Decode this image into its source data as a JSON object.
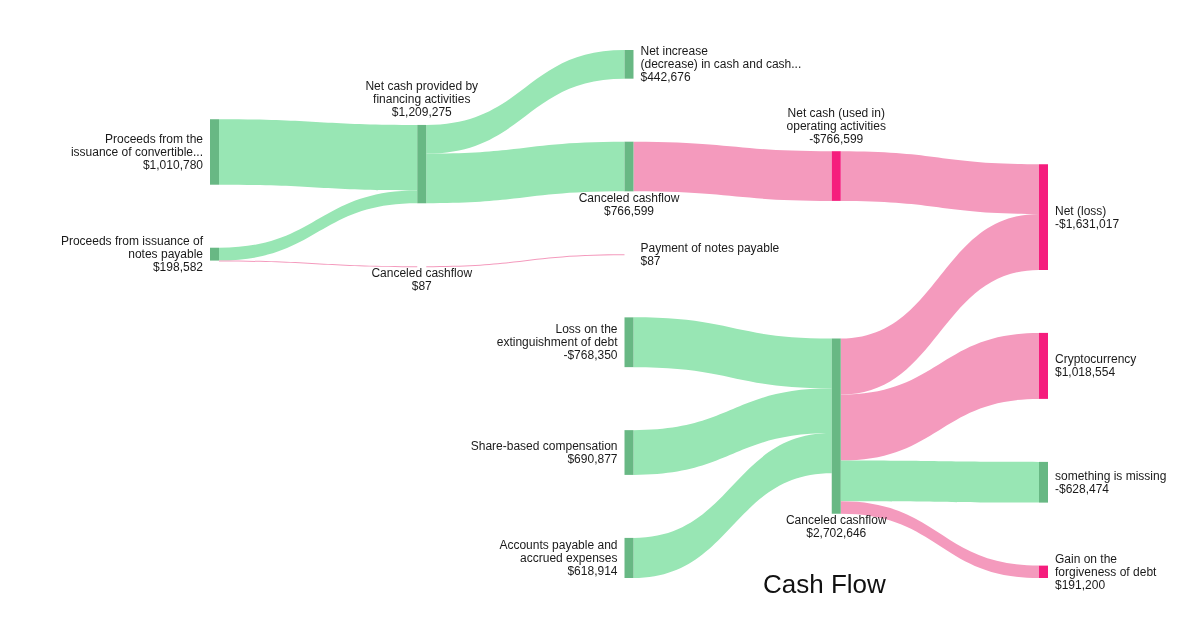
{
  "chart_data": {
    "type": "other",
    "title": "Cash Flow",
    "categories": [
      "Proceeds from the\nissuance of convertible...",
      "Proceeds from issuance of\nnotes payable",
      "Net cash provided by\nfinancing activities",
      "Canceled cashflow",
      "Net increase\n(decrease) in cash and cash...",
      "Canceled cashflow",
      "Payment of notes payable",
      "Loss on the\nextinguishment of debt",
      "Share-based compensation",
      "Accounts payable and\naccrued expenses",
      "Net cash (used in)\noperating activities",
      "Canceled cashflow",
      "Net (loss)",
      "Cryptocurrency",
      "something is missing",
      "Gain on the\nforgiveness of debt"
    ],
    "values": [
      1010780,
      198582,
      1209275,
      87,
      442676,
      766599,
      87,
      -768350,
      690877,
      618914,
      -766599,
      2702646,
      -1631017,
      1018554,
      -628474,
      191200
    ],
    "value_labels": [
      "$1,010,780",
      "$198,582",
      "$1,209,275",
      "$87",
      "$442,676",
      "$766,599",
      "$87",
      "-$768,350",
      "$690,877",
      "$618,914",
      "-$766,599",
      "$2,702,646",
      "-$1,631,017",
      "$1,018,554",
      "-$628,474",
      "$191,200"
    ],
    "colors": [
      "#68b884",
      "#68b884",
      "#68b884",
      "#f51d7d",
      "#68b884",
      "#68b884",
      "#f51d7d",
      "#68b884",
      "#68b884",
      "#68b884",
      "#f51d7d",
      "#68b884",
      "#f51d7d",
      "#f51d7d",
      "#68b884",
      "#f51d7d"
    ],
    "series": [
      {
        "colors": [
          null,
          null,
          "#98e6b4",
          null,
          null,
          null,
          null,
          null,
          null,
          null,
          null,
          null,
          null,
          null,
          null,
          null
        ],
        "values": [
          null,
          null,
          null,
          null,
          null,
          null,
          null,
          null,
          null,
          null,
          null,
          null,
          null,
          null,
          null,
          null
        ]
      },
      {
        "colors": [
          null,
          null,
          "#98e6b4",
          "#f49abd",
          null,
          null,
          null,
          null,
          null,
          null,
          null,
          null,
          null,
          null,
          null,
          null
        ],
        "values": [
          null,
          null,
          null,
          null,
          null,
          null,
          null,
          null,
          null,
          null,
          null,
          null,
          null,
          null,
          null,
          null
        ]
      },
      {
        "colors": [
          null,
          null,
          null,
          null,
          "#98e6b4",
          "#98e6b4",
          null,
          null,
          null,
          null,
          null,
          null,
          null,
          null,
          null,
          null
        ],
        "values": [
          null,
          null,
          null,
          null,
          null,
          null,
          null,
          null,
          null,
          null,
          null,
          null,
          null,
          null,
          null,
          null
        ]
      },
      {
        "colors": [
          null,
          null,
          null,
          null,
          null,
          null,
          "#f49abd",
          null,
          null,
          null,
          null,
          null,
          null,
          null,
          null,
          null
        ],
        "values": [
          null,
          null,
          null,
          null,
          null,
          null,
          null,
          null,
          null,
          null,
          null,
          null,
          null,
          null,
          null,
          null
        ]
      },
      {
        "values": [
          null,
          null,
          null,
          null,
          null,
          null,
          null,
          null,
          null,
          null,
          null,
          null,
          null,
          null,
          null,
          null
        ]
      },
      {
        "colors": [
          null,
          null,
          null,
          null,
          null,
          null,
          null,
          null,
          null,
          null,
          "#f49abd",
          null,
          null,
          null,
          null,
          null
        ],
        "values": [
          null,
          null,
          null,
          null,
          null,
          null,
          null,
          null,
          null,
          null,
          null,
          null,
          null,
          null,
          null,
          null
        ]
      },
      {
        "values": [
          null,
          null,
          null,
          null,
          null,
          null,
          null,
          null,
          null,
          null,
          null,
          null,
          null,
          null,
          null,
          null
        ]
      },
      {
        "colors": [
          null,
          null,
          null,
          null,
          null,
          null,
          null,
          null,
          null,
          null,
          null,
          "#98e6b4",
          null,
          null,
          null,
          null
        ],
        "values": [
          null,
          null,
          null,
          null,
          null,
          null,
          null,
          null,
          null,
          null,
          null,
          null,
          null,
          null,
          null,
          null
        ]
      },
      {
        "colors": [
          null,
          null,
          null,
          null,
          null,
          null,
          null,
          null,
          null,
          null,
          null,
          "#98e6b4",
          null,
          null,
          null,
          null
        ],
        "values": [
          null,
          null,
          null,
          null,
          null,
          null,
          null,
          null,
          null,
          null,
          null,
          null,
          null,
          null,
          null,
          null
        ]
      },
      {
        "colors": [
          null,
          null,
          null,
          null,
          null,
          null,
          null,
          null,
          null,
          null,
          null,
          "#98e6b4",
          null,
          null,
          null,
          null
        ],
        "values": [
          null,
          null,
          null,
          null,
          null,
          null,
          null,
          null,
          null,
          null,
          null,
          null,
          null,
          null,
          null,
          null
        ]
      },
      {
        "colors": [
          null,
          null,
          null,
          null,
          null,
          null,
          null,
          null,
          null,
          null,
          null,
          null,
          "#f49abd",
          null,
          null,
          null
        ],
        "values": [
          null,
          null,
          null,
          null,
          null,
          null,
          null,
          null,
          null,
          null,
          null,
          null,
          null,
          null,
          null,
          null
        ]
      },
      {
        "colors": [
          null,
          null,
          null,
          null,
          null,
          null,
          null,
          null,
          null,
          null,
          null,
          null,
          "#f49abd",
          "#f49abd",
          "#98e6b4",
          "#f49abd"
        ],
        "values": [
          null,
          null,
          null,
          null,
          null,
          null,
          null,
          null,
          null,
          null,
          null,
          null,
          null,
          null,
          null,
          null
        ]
      }
    ]
  }
}
